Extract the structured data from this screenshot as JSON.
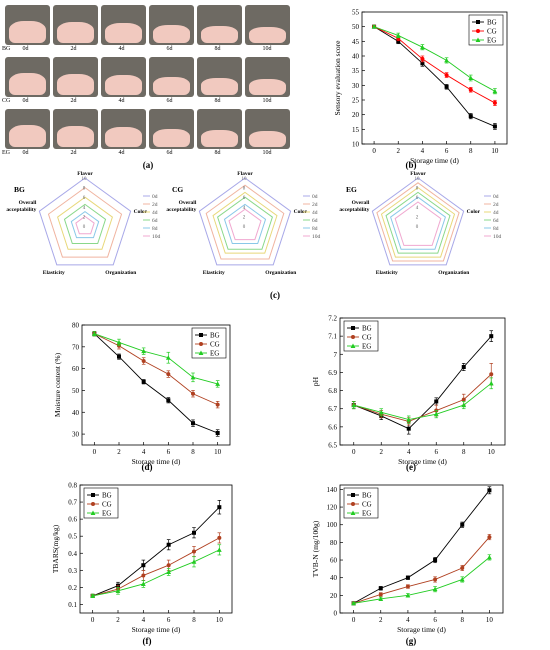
{
  "panel_letters": [
    "(a)",
    "(b)",
    "(c)",
    "(d)",
    "(e)",
    "(f)",
    "(g)"
  ],
  "photos": {
    "groups": [
      "BG",
      "CG",
      "EG"
    ],
    "days": [
      "0d",
      "2d",
      "4d",
      "6d",
      "8d",
      "10d"
    ],
    "jar_color": "#6e6a63",
    "meat_color": "#f1c9bf"
  },
  "colors": {
    "BG": "#000000",
    "CG": "#ff0000",
    "EG": "#22cc22"
  },
  "chart_data": [
    {
      "id": "b",
      "type": "line",
      "title": "",
      "xlabel": "Storage time (d)",
      "ylabel": "Sensory evaluation score",
      "x": [
        0,
        2,
        4,
        6,
        8,
        10
      ],
      "xlim": [
        -1,
        11
      ],
      "ylim": [
        10,
        55
      ],
      "xticks": [
        0,
        2,
        4,
        6,
        8,
        10
      ],
      "yticks": [
        10,
        15,
        20,
        25,
        30,
        35,
        40,
        45,
        50,
        55
      ],
      "legend_position": "top-right",
      "grid": false,
      "series": [
        {
          "name": "BG",
          "color": "#000000",
          "marker": "square",
          "values": [
            50,
            45,
            37.5,
            29.5,
            19.5,
            16
          ],
          "err": [
            0.4,
            0.8,
            1,
            0.8,
            0.9,
            1
          ]
        },
        {
          "name": "CG",
          "color": "#ff0000",
          "marker": "circle",
          "values": [
            50,
            46,
            39,
            33.5,
            28.5,
            24
          ],
          "err": [
            0.4,
            0.8,
            1,
            0.8,
            0.8,
            0.9
          ]
        },
        {
          "name": "EG",
          "color": "#22cc22",
          "marker": "triangle",
          "values": [
            50,
            47,
            43,
            38.5,
            32.5,
            28
          ],
          "err": [
            0.4,
            0.8,
            0.9,
            0.9,
            1,
            0.9
          ]
        }
      ]
    },
    {
      "id": "c",
      "type": "radar",
      "axes": [
        "Flavor",
        "Color",
        "Organization",
        "Elasticity",
        "Overall acceptability"
      ],
      "radial_ticks": [
        "0",
        "2",
        "4",
        "6",
        "8",
        "10"
      ],
      "rmax": 10,
      "series_colors": [
        "#a8a8e8",
        "#f0b4a0",
        "#e8d87a",
        "#8ad88a",
        "#8ac8e8",
        "#f0a8d0"
      ],
      "groups": [
        {
          "name": "BG",
          "legend": [
            "0d",
            "2d",
            "4d",
            "6d",
            "8d",
            "10d"
          ],
          "series": [
            [
              10,
              10,
              10,
              10,
              10
            ],
            [
              8,
              8,
              8,
              8,
              8
            ],
            [
              6,
              6,
              6,
              6,
              6
            ],
            [
              4.5,
              4.5,
              4.5,
              4.5,
              4.5
            ],
            [
              3,
              3,
              3,
              3,
              3
            ],
            [
              2,
              2,
              2,
              2,
              2
            ]
          ]
        },
        {
          "name": "CG",
          "legend": [
            "0d",
            "2d",
            "4d",
            "6d",
            "8d",
            "10d"
          ],
          "series": [
            [
              10,
              10,
              10,
              10,
              10
            ],
            [
              8.5,
              8.5,
              8.5,
              8.5,
              8.5
            ],
            [
              7,
              7,
              7,
              7,
              7
            ],
            [
              6,
              6,
              6,
              6,
              6
            ],
            [
              4.5,
              4.5,
              4.5,
              4.5,
              4.5
            ],
            [
              3.5,
              3.5,
              3.5,
              3.5,
              3.5
            ]
          ]
        },
        {
          "name": "EG",
          "legend": [
            "0d",
            "2d",
            "4d",
            "6d",
            "8d",
            "10d"
          ],
          "series": [
            [
              10,
              10,
              10,
              10,
              10
            ],
            [
              9,
              9,
              9,
              9,
              9
            ],
            [
              8,
              8,
              8,
              8,
              8
            ],
            [
              7,
              7,
              7,
              7,
              7
            ],
            [
              6,
              6,
              6,
              6,
              6
            ],
            [
              5,
              5,
              5,
              5,
              5
            ]
          ]
        }
      ]
    },
    {
      "id": "d",
      "type": "line",
      "title": "",
      "xlabel": "Storage time (d)",
      "ylabel": "Moisture content (%)",
      "x": [
        0,
        2,
        4,
        6,
        8,
        10
      ],
      "xlim": [
        -1,
        11
      ],
      "ylim": [
        25,
        80
      ],
      "xticks": [
        0,
        2,
        4,
        6,
        8,
        10
      ],
      "yticks": [
        30,
        40,
        50,
        60,
        70,
        80
      ],
      "legend_position": "top-right",
      "grid": false,
      "series": [
        {
          "name": "BG",
          "color": "#000000",
          "marker": "square",
          "values": [
            76,
            65.5,
            54,
            45.5,
            35,
            30.5
          ],
          "err": [
            1,
            1.2,
            1,
            1.2,
            1.5,
            1.5
          ]
        },
        {
          "name": "CG",
          "color": "#b04020",
          "marker": "circle",
          "values": [
            76,
            70.5,
            63.5,
            57.5,
            48.5,
            43.5
          ],
          "err": [
            1,
            1.5,
            1.5,
            1.5,
            1.5,
            1.5
          ]
        },
        {
          "name": "EG",
          "color": "#22cc22",
          "marker": "triangle",
          "values": [
            76,
            72,
            68,
            65,
            56,
            53
          ],
          "err": [
            1,
            1.5,
            1.5,
            2.5,
            2,
            1.5
          ]
        }
      ]
    },
    {
      "id": "e",
      "type": "line",
      "title": "",
      "xlabel": "Storage time (d)",
      "ylabel": "pH",
      "x": [
        0,
        2,
        4,
        6,
        8,
        10
      ],
      "xlim": [
        -1,
        11
      ],
      "ylim": [
        6.5,
        7.2
      ],
      "xticks": [
        0,
        2,
        4,
        6,
        8,
        10
      ],
      "yticks": [
        6.5,
        6.6,
        6.7,
        6.8,
        6.9,
        7.0,
        7.1,
        7.2
      ],
      "legend_position": "top-left",
      "grid": false,
      "series": [
        {
          "name": "BG",
          "color": "#000000",
          "marker": "square",
          "values": [
            6.72,
            6.66,
            6.59,
            6.74,
            6.93,
            7.1
          ],
          "err": [
            0.02,
            0.02,
            0.03,
            0.02,
            0.02,
            0.03
          ]
        },
        {
          "name": "CG",
          "color": "#b04020",
          "marker": "circle",
          "values": [
            6.72,
            6.67,
            6.63,
            6.69,
            6.75,
            6.89
          ],
          "err": [
            0.02,
            0.02,
            0.02,
            0.03,
            0.03,
            0.06
          ]
        },
        {
          "name": "EG",
          "color": "#22cc22",
          "marker": "triangle",
          "values": [
            6.72,
            6.68,
            6.64,
            6.67,
            6.72,
            6.84
          ],
          "err": [
            0.02,
            0.02,
            0.02,
            0.02,
            0.02,
            0.03
          ]
        }
      ]
    },
    {
      "id": "f",
      "type": "line",
      "title": "",
      "xlabel": "Storage time (d)",
      "ylabel": "TBARS(mg/kg)",
      "x": [
        0,
        2,
        4,
        6,
        8,
        10
      ],
      "xlim": [
        -1,
        11
      ],
      "ylim": [
        0.05,
        0.8
      ],
      "xticks": [
        0,
        2,
        4,
        6,
        8,
        10
      ],
      "yticks": [
        0.1,
        0.2,
        0.3,
        0.4,
        0.5,
        0.6,
        0.7,
        0.8
      ],
      "legend_position": "top-left",
      "grid": false,
      "series": [
        {
          "name": "BG",
          "color": "#000000",
          "marker": "square",
          "values": [
            0.15,
            0.21,
            0.33,
            0.45,
            0.52,
            0.67
          ],
          "err": [
            0.01,
            0.02,
            0.03,
            0.03,
            0.03,
            0.04
          ]
        },
        {
          "name": "CG",
          "color": "#b04020",
          "marker": "circle",
          "values": [
            0.15,
            0.19,
            0.27,
            0.33,
            0.41,
            0.49
          ],
          "err": [
            0.01,
            0.02,
            0.03,
            0.03,
            0.03,
            0.03
          ]
        },
        {
          "name": "EG",
          "color": "#22cc22",
          "marker": "triangle",
          "values": [
            0.15,
            0.18,
            0.22,
            0.29,
            0.35,
            0.42
          ],
          "err": [
            0.01,
            0.02,
            0.02,
            0.02,
            0.03,
            0.03
          ]
        }
      ]
    },
    {
      "id": "g",
      "type": "line",
      "title": "",
      "xlabel": "Storage time (d)",
      "ylabel": "TVB-N (mg/100g)",
      "x": [
        0,
        2,
        4,
        6,
        8,
        10
      ],
      "xlim": [
        -1,
        11
      ],
      "ylim": [
        0,
        145
      ],
      "xticks": [
        0,
        2,
        4,
        6,
        8,
        10
      ],
      "yticks": [
        0,
        20,
        40,
        60,
        80,
        100,
        120,
        140
      ],
      "legend_position": "top-left",
      "grid": false,
      "series": [
        {
          "name": "BG",
          "color": "#000000",
          "marker": "square",
          "values": [
            11,
            28,
            40,
            60,
            100,
            139
          ],
          "err": [
            1,
            2,
            2,
            3,
            3,
            4
          ]
        },
        {
          "name": "CG",
          "color": "#b04020",
          "marker": "circle",
          "values": [
            11,
            21,
            30,
            38,
            51,
            86
          ],
          "err": [
            1,
            2,
            2,
            3,
            3,
            3
          ]
        },
        {
          "name": "EG",
          "color": "#22cc22",
          "marker": "triangle",
          "values": [
            11,
            16,
            20,
            27,
            38,
            63
          ],
          "err": [
            1,
            2,
            2,
            3,
            3,
            3
          ]
        }
      ]
    }
  ]
}
